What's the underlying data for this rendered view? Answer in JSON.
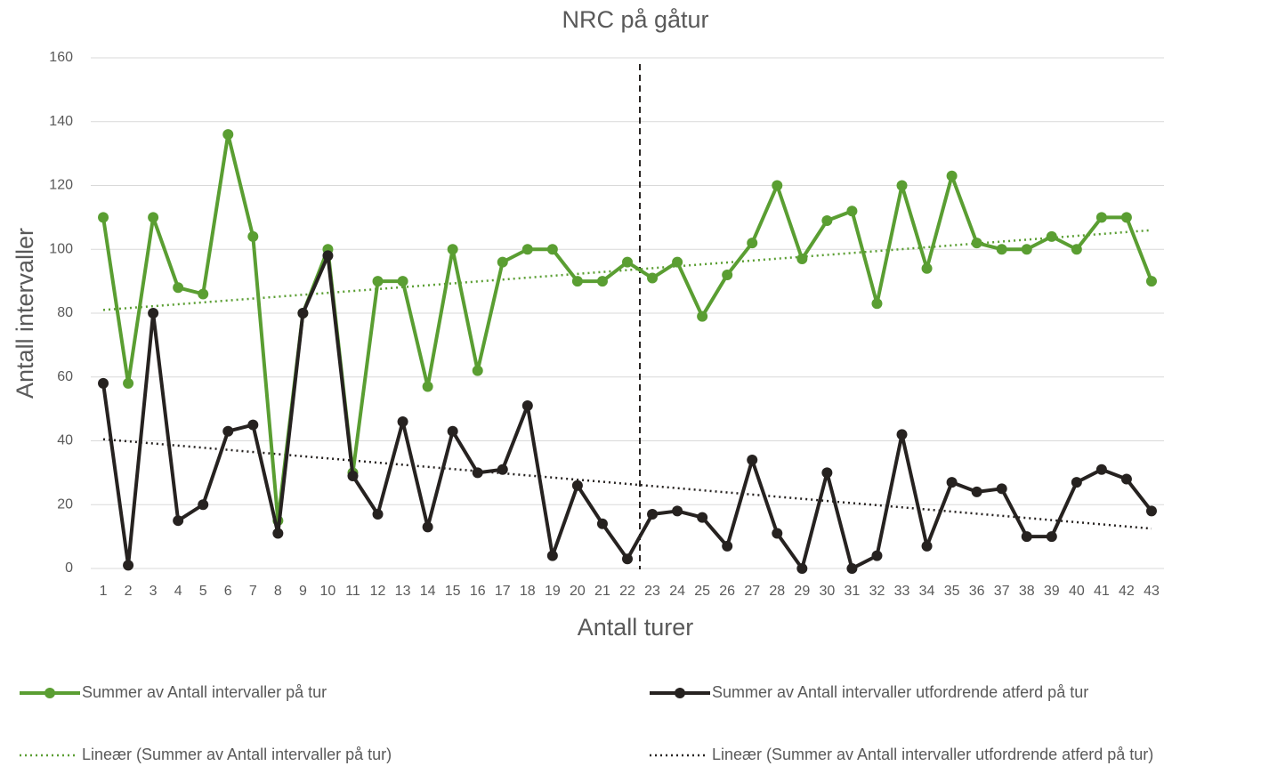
{
  "chart_data": {
    "type": "line",
    "title": "NRC på gåtur",
    "x_label": "Antall turer",
    "y_label": "Antall intervaller",
    "categories": [
      "1",
      "2",
      "3",
      "4",
      "5",
      "6",
      "7",
      "8",
      "9",
      "10",
      "11",
      "12",
      "13",
      "14",
      "15",
      "16",
      "17",
      "18",
      "19",
      "20",
      "21",
      "22",
      "23",
      "24",
      "25",
      "26",
      "27",
      "28",
      "29",
      "30",
      "31",
      "32",
      "33",
      "34",
      "35",
      "36",
      "37",
      "38",
      "39",
      "40",
      "41",
      "42",
      "43"
    ],
    "series": [
      {
        "name": "Summer av Antall intervaller på tur",
        "color": "#5a9e32",
        "values": [
          110,
          58,
          110,
          88,
          86,
          136,
          104,
          15,
          80,
          100,
          30,
          90,
          90,
          57,
          100,
          62,
          96,
          100,
          100,
          90,
          90,
          96,
          91,
          96,
          79,
          92,
          102,
          120,
          97,
          109,
          112,
          83,
          120,
          94,
          123,
          102,
          100,
          100,
          104,
          100,
          110,
          110,
          90
        ]
      },
      {
        "name": "Summer av Antall intervaller utfordrende atferd på tur",
        "color": "#262220",
        "values": [
          58,
          1,
          80,
          15,
          20,
          43,
          45,
          11,
          80,
          98,
          29,
          17,
          46,
          13,
          43,
          30,
          31,
          51,
          4,
          26,
          14,
          3,
          17,
          18,
          16,
          7,
          34,
          11,
          0,
          30,
          0,
          4,
          42,
          7,
          27,
          24,
          25,
          10,
          10,
          27,
          31,
          28,
          18
        ]
      }
    ],
    "trendlines": [
      {
        "name": "Lineær (Summer av Antall intervaller på tur)",
        "color": "#5a9e32",
        "values": [
          81,
          106
        ]
      },
      {
        "name": "Lineær (Summer av Antall intervaller utfordrende atferd på tur)",
        "color": "#262220",
        "values": [
          40.5,
          12.5
        ]
      }
    ],
    "ylim": [
      0,
      160
    ],
    "yticks": [
      0,
      20,
      40,
      60,
      80,
      100,
      120,
      140,
      160
    ],
    "grid": true
  }
}
